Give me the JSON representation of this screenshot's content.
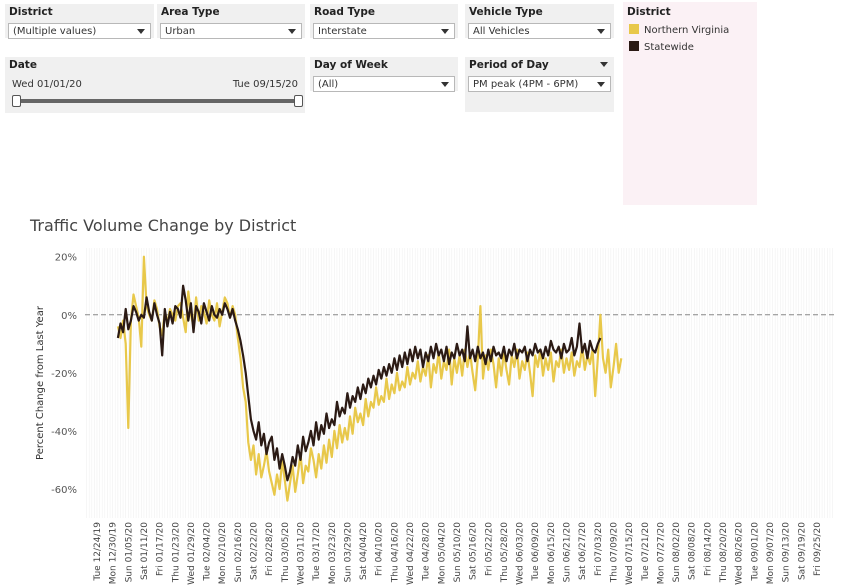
{
  "filters": {
    "district": {
      "label": "District",
      "value": "(Multiple values)"
    },
    "area_type": {
      "label": "Area Type",
      "value": "Urban"
    },
    "road_type": {
      "label": "Road Type",
      "value": "Interstate"
    },
    "vehicle_type": {
      "label": "Vehicle Type",
      "value": "All Vehicles"
    },
    "date": {
      "label": "Date",
      "start": "Wed 01/01/20",
      "end": "Tue 09/15/20"
    },
    "day_of_week": {
      "label": "Day of Week",
      "value": "(All)"
    },
    "period_of_day": {
      "label": "Period of Day",
      "value": "PM peak (4PM - 6PM)"
    }
  },
  "legend": {
    "title": "District",
    "items": [
      {
        "label": "Northern Virginia",
        "color": "#e8c84a"
      },
      {
        "label": "Statewide",
        "color": "#2b1a14"
      }
    ]
  },
  "chart_data": {
    "type": "line",
    "title": "Traffic Volume Change by District",
    "ylabel": "Percent Change from Last Year",
    "xlabel": "",
    "ylim": [
      -70,
      23
    ],
    "yticks": [
      20,
      0,
      -20,
      -40,
      -60
    ],
    "ytick_labels": [
      "20%",
      "0%",
      "-20%",
      "-40%",
      "-60%"
    ],
    "reference_line": 0,
    "x_tick_labels": [
      "Tue 12/24/19",
      "Mon 12/30/19",
      "Sun 01/05/20",
      "Sat 01/11/20",
      "Fri 01/17/20",
      "Thu 01/23/20",
      "Wed 01/29/20",
      "Tue 02/04/20",
      "Mon 02/10/20",
      "Sun 02/16/20",
      "Sat 02/22/20",
      "Fri 02/28/20",
      "Thu 03/05/20",
      "Wed 03/11/20",
      "Tue 03/17/20",
      "Mon 03/23/20",
      "Sun 03/29/20",
      "Sat 04/04/20",
      "Fri 04/10/20",
      "Thu 04/16/20",
      "Wed 04/22/20",
      "Tue 04/28/20",
      "Mon 05/04/20",
      "Sun 05/10/20",
      "Sat 05/16/20",
      "Fri 05/22/20",
      "Thu 05/28/20",
      "Wed 06/03/20",
      "Tue 06/09/20",
      "Mon 06/15/20",
      "Sun 06/21/20",
      "Sat 06/27/20",
      "Fri 07/03/20",
      "Thu 07/09/20",
      "Wed 07/15/20",
      "Tue 07/21/20",
      "Mon 07/27/20",
      "Sun 08/02/20",
      "Sat 08/08/20",
      "Fri 08/14/20",
      "Thu 08/20/20",
      "Wed 08/26/20",
      "Tue 09/01/20",
      "Mon 09/07/20",
      "Sun 09/13/20",
      "Sat 09/19/20",
      "Fri 09/25/20"
    ],
    "grid": "vertical",
    "series": [
      {
        "name": "Northern Virginia",
        "color": "#e8c84a",
        "x_start": "2020-01-01",
        "values": [
          -4,
          -8,
          -2,
          -10,
          -39,
          -2,
          7,
          3,
          -1,
          -11,
          20,
          3,
          0,
          -2,
          5,
          2,
          -4,
          -7,
          1,
          -3,
          2,
          0,
          -2,
          3,
          4,
          -1,
          -6,
          8,
          0,
          -4,
          6,
          -2,
          3,
          1,
          -3,
          5,
          0,
          -2,
          4,
          -4,
          1,
          6,
          4,
          -1,
          3,
          0,
          -8,
          -15,
          -25,
          -30,
          -44,
          -50,
          -45,
          -55,
          -48,
          -56,
          -52,
          -47,
          -54,
          -58,
          -62,
          -55,
          -60,
          -50,
          -57,
          -64,
          -58,
          -52,
          -61,
          -55,
          -48,
          -58,
          -52,
          -54,
          -46,
          -50,
          -56,
          -48,
          -53,
          -45,
          -51,
          -43,
          -49,
          -40,
          -46,
          -38,
          -44,
          -39,
          -43,
          -35,
          -41,
          -32,
          -37,
          -34,
          -38,
          -29,
          -35,
          -30,
          -32,
          -25,
          -31,
          -28,
          -30,
          -22,
          -29,
          -24,
          -27,
          -20,
          -26,
          -23,
          -25,
          -18,
          -24,
          -20,
          -22,
          -16,
          -23,
          -18,
          -21,
          -14,
          -25,
          -17,
          -20,
          -13,
          -22,
          -16,
          -19,
          -12,
          -24,
          -15,
          -20,
          -14,
          -21,
          -12,
          -18,
          -13,
          -20,
          -26,
          -15,
          3,
          -22,
          -14,
          -19,
          -12,
          -17,
          -25,
          -15,
          -21,
          -13,
          -19,
          -24,
          -14,
          -18,
          -12,
          -22,
          -16,
          -19,
          -13,
          -20,
          -28,
          -14,
          -18,
          -12,
          -21,
          -15,
          -19,
          -13,
          -23,
          -16,
          -18,
          -12,
          -20,
          -15,
          -19,
          -13,
          -21,
          -16,
          -18,
          -11,
          -19,
          -14,
          -17,
          -12,
          -28,
          -15,
          0,
          -15,
          -20,
          -12,
          -25,
          -18,
          -10,
          -20,
          -15
        ]
      },
      {
        "name": "Statewide",
        "color": "#2b1a14",
        "x_start": "2020-01-01",
        "values": [
          -8,
          -3,
          -6,
          2,
          -5,
          -2,
          3,
          1,
          -2,
          0,
          -1,
          6,
          1,
          -2,
          4,
          0,
          -3,
          -14,
          2,
          -4,
          1,
          -3,
          3,
          2,
          -1,
          10,
          5,
          -2,
          4,
          -6,
          3,
          1,
          -3,
          4,
          1,
          -2,
          3,
          0,
          -1,
          2,
          0,
          4,
          2,
          -1,
          2,
          -2,
          -5,
          -9,
          -14,
          -20,
          -28,
          -36,
          -40,
          -43,
          -37,
          -45,
          -41,
          -48,
          -44,
          -42,
          -50,
          -46,
          -53,
          -48,
          -52,
          -57,
          -54,
          -49,
          -52,
          -45,
          -50,
          -42,
          -47,
          -44,
          -40,
          -45,
          -37,
          -43,
          -38,
          -41,
          -34,
          -39,
          -36,
          -38,
          -30,
          -35,
          -32,
          -34,
          -27,
          -32,
          -28,
          -30,
          -25,
          -29,
          -24,
          -27,
          -22,
          -25,
          -21,
          -24,
          -19,
          -22,
          -18,
          -21,
          -17,
          -20,
          -15,
          -19,
          -14,
          -18,
          -13,
          -17,
          -12,
          -16,
          -11,
          -15,
          -12,
          -18,
          -13,
          -16,
          -11,
          -15,
          -10,
          -14,
          -12,
          -16,
          -11,
          -17,
          -13,
          -15,
          -10,
          -14,
          -12,
          -16,
          -4,
          -15,
          -12,
          -16,
          -11,
          -15,
          -13,
          -17,
          -12,
          -16,
          -11,
          -14,
          -13,
          -15,
          -11,
          -16,
          -12,
          -14,
          -10,
          -15,
          -12,
          -13,
          -11,
          -16,
          -12,
          -14,
          -10,
          -13,
          -12,
          -15,
          -11,
          -14,
          -9,
          -12,
          -13,
          -11,
          -15,
          -10,
          -13,
          -12,
          -8,
          -14,
          -11,
          -3,
          -13,
          -10,
          -15,
          -9,
          -12,
          -13,
          -10,
          -8
        ]
      }
    ]
  }
}
